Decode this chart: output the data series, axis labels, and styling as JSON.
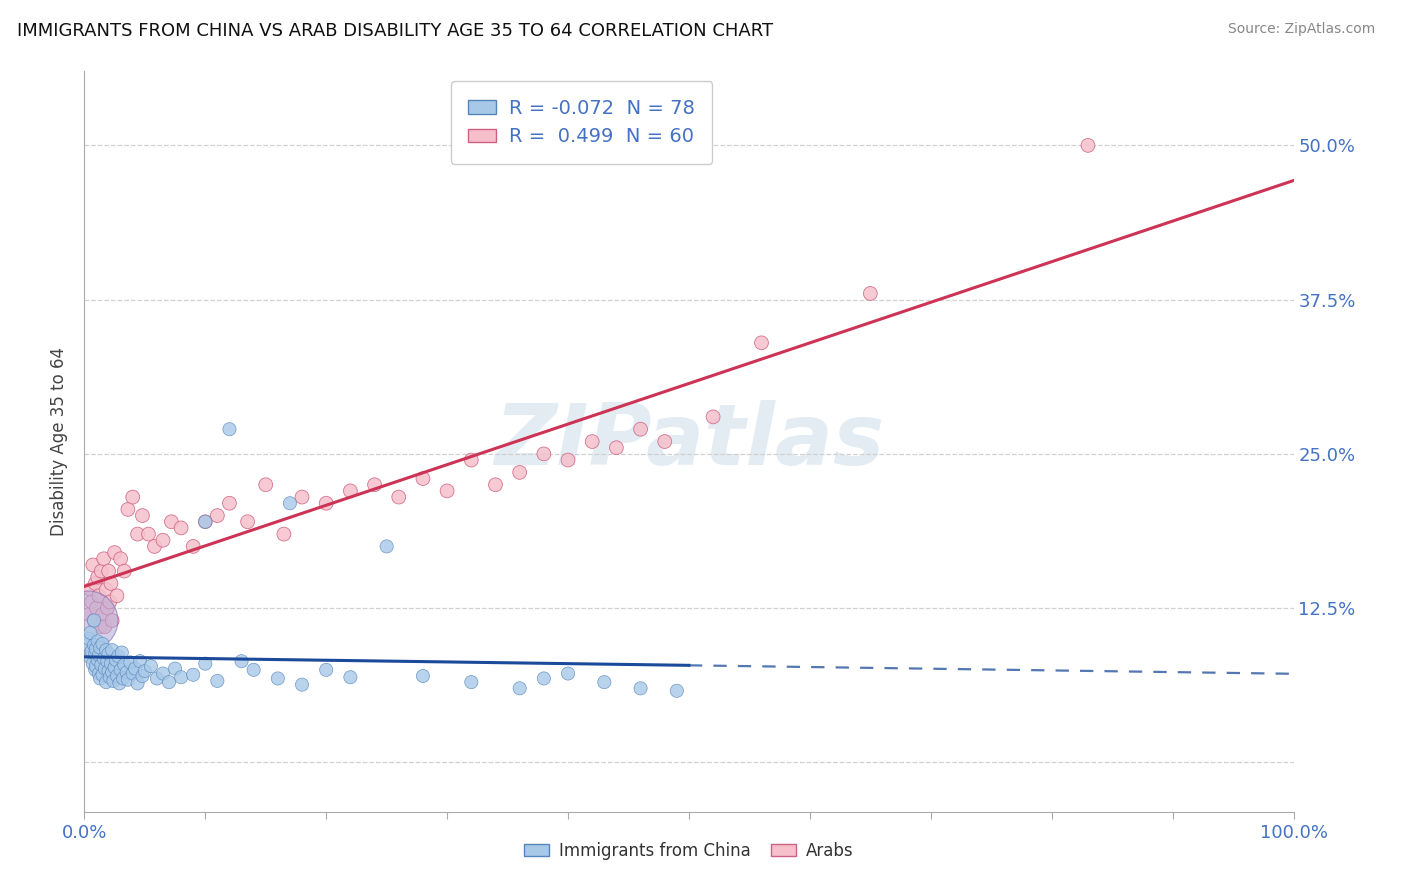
{
  "title": "IMMIGRANTS FROM CHINA VS ARAB DISABILITY AGE 35 TO 64 CORRELATION CHART",
  "source_text": "Source: ZipAtlas.com",
  "ylabel": "Disability Age 35 to 64",
  "watermark": "ZIPatlas",
  "xlim": [
    0.0,
    1.0
  ],
  "ylim": [
    -0.04,
    0.56
  ],
  "grid_color": "#cccccc",
  "bg_color": "#ffffff",
  "title_color": "#111111",
  "title_fontsize": 13,
  "tick_color": "#4472c4",
  "china_color": "#a8c8e8",
  "china_edge_color": "#5585bb",
  "arab_color": "#f5c0cc",
  "arab_edge_color": "#d06080",
  "china_R": -0.072,
  "china_N": 78,
  "arab_R": 0.499,
  "arab_N": 60,
  "china_line_color": "#1a4a99",
  "arab_line_color": "#cc3355",
  "legend_text_color": "#4472c4",
  "china_points_x": [
    0.003,
    0.004,
    0.005,
    0.005,
    0.006,
    0.007,
    0.008,
    0.008,
    0.009,
    0.009,
    0.01,
    0.01,
    0.011,
    0.011,
    0.012,
    0.012,
    0.013,
    0.013,
    0.014,
    0.015,
    0.015,
    0.016,
    0.017,
    0.018,
    0.018,
    0.019,
    0.02,
    0.02,
    0.021,
    0.022,
    0.023,
    0.023,
    0.024,
    0.025,
    0.026,
    0.027,
    0.028,
    0.029,
    0.03,
    0.031,
    0.032,
    0.033,
    0.035,
    0.036,
    0.038,
    0.04,
    0.042,
    0.044,
    0.046,
    0.048,
    0.05,
    0.055,
    0.06,
    0.065,
    0.07,
    0.075,
    0.08,
    0.09,
    0.1,
    0.11,
    0.12,
    0.14,
    0.16,
    0.18,
    0.2,
    0.22,
    0.25,
    0.28,
    0.32,
    0.36,
    0.4,
    0.43,
    0.46,
    0.49,
    0.1,
    0.13,
    0.17,
    0.38
  ],
  "china_points_y": [
    0.095,
    0.1,
    0.085,
    0.105,
    0.09,
    0.08,
    0.095,
    0.115,
    0.075,
    0.088,
    0.092,
    0.078,
    0.083,
    0.098,
    0.072,
    0.087,
    0.093,
    0.068,
    0.079,
    0.096,
    0.071,
    0.084,
    0.076,
    0.091,
    0.065,
    0.082,
    0.074,
    0.088,
    0.069,
    0.08,
    0.073,
    0.091,
    0.066,
    0.077,
    0.083,
    0.07,
    0.086,
    0.064,
    0.075,
    0.089,
    0.068,
    0.079,
    0.073,
    0.067,
    0.081,
    0.072,
    0.076,
    0.064,
    0.082,
    0.07,
    0.074,
    0.078,
    0.068,
    0.072,
    0.065,
    0.076,
    0.069,
    0.071,
    0.08,
    0.066,
    0.27,
    0.075,
    0.068,
    0.063,
    0.075,
    0.069,
    0.175,
    0.07,
    0.065,
    0.06,
    0.072,
    0.065,
    0.06,
    0.058,
    0.195,
    0.082,
    0.21,
    0.068
  ],
  "china_sizes": [
    50,
    50,
    50,
    50,
    50,
    50,
    50,
    50,
    50,
    50,
    60,
    60,
    50,
    50,
    50,
    50,
    50,
    50,
    50,
    50,
    50,
    50,
    50,
    50,
    50,
    50,
    50,
    50,
    50,
    50,
    50,
    50,
    50,
    50,
    50,
    50,
    50,
    50,
    50,
    50,
    50,
    50,
    50,
    50,
    50,
    50,
    50,
    50,
    50,
    50,
    50,
    50,
    50,
    50,
    50,
    50,
    50,
    50,
    50,
    50,
    50,
    50,
    50,
    50,
    50,
    50,
    50,
    50,
    50,
    50,
    50,
    50,
    50,
    50,
    50,
    50,
    50,
    50
  ],
  "china_big_x": [
    0.003
  ],
  "china_big_y": [
    0.115
  ],
  "china_big_sizes": [
    1800
  ],
  "arab_points_x": [
    0.004,
    0.005,
    0.006,
    0.007,
    0.008,
    0.009,
    0.01,
    0.011,
    0.012,
    0.013,
    0.014,
    0.015,
    0.016,
    0.017,
    0.018,
    0.019,
    0.02,
    0.021,
    0.022,
    0.023,
    0.025,
    0.027,
    0.03,
    0.033,
    0.036,
    0.04,
    0.044,
    0.048,
    0.053,
    0.058,
    0.065,
    0.072,
    0.08,
    0.09,
    0.1,
    0.11,
    0.12,
    0.135,
    0.15,
    0.165,
    0.18,
    0.2,
    0.22,
    0.24,
    0.26,
    0.28,
    0.3,
    0.32,
    0.34,
    0.36,
    0.38,
    0.4,
    0.42,
    0.44,
    0.46,
    0.48,
    0.52,
    0.56,
    0.65,
    0.83
  ],
  "arab_points_y": [
    0.12,
    0.14,
    0.13,
    0.16,
    0.115,
    0.145,
    0.125,
    0.15,
    0.135,
    0.11,
    0.155,
    0.12,
    0.165,
    0.11,
    0.14,
    0.125,
    0.155,
    0.13,
    0.145,
    0.115,
    0.17,
    0.135,
    0.165,
    0.155,
    0.205,
    0.215,
    0.185,
    0.2,
    0.185,
    0.175,
    0.18,
    0.195,
    0.19,
    0.175,
    0.195,
    0.2,
    0.21,
    0.195,
    0.225,
    0.185,
    0.215,
    0.21,
    0.22,
    0.225,
    0.215,
    0.23,
    0.22,
    0.245,
    0.225,
    0.235,
    0.25,
    0.245,
    0.26,
    0.255,
    0.27,
    0.26,
    0.28,
    0.34,
    0.38,
    0.5
  ],
  "arab_sizes": [
    55,
    55,
    55,
    55,
    55,
    55,
    55,
    55,
    55,
    55,
    55,
    55,
    55,
    55,
    55,
    55,
    55,
    55,
    55,
    55,
    55,
    55,
    55,
    55,
    55,
    55,
    55,
    55,
    55,
    55,
    55,
    55,
    55,
    55,
    55,
    55,
    55,
    55,
    55,
    55,
    55,
    55,
    55,
    55,
    55,
    55,
    55,
    55,
    55,
    55,
    55,
    55,
    55,
    55,
    55,
    55,
    55,
    55,
    55,
    55
  ],
  "china_line_start": 0.0,
  "china_line_solid_end": 0.5,
  "china_line_end": 1.0,
  "arab_line_start": 0.0,
  "arab_line_end": 1.0
}
